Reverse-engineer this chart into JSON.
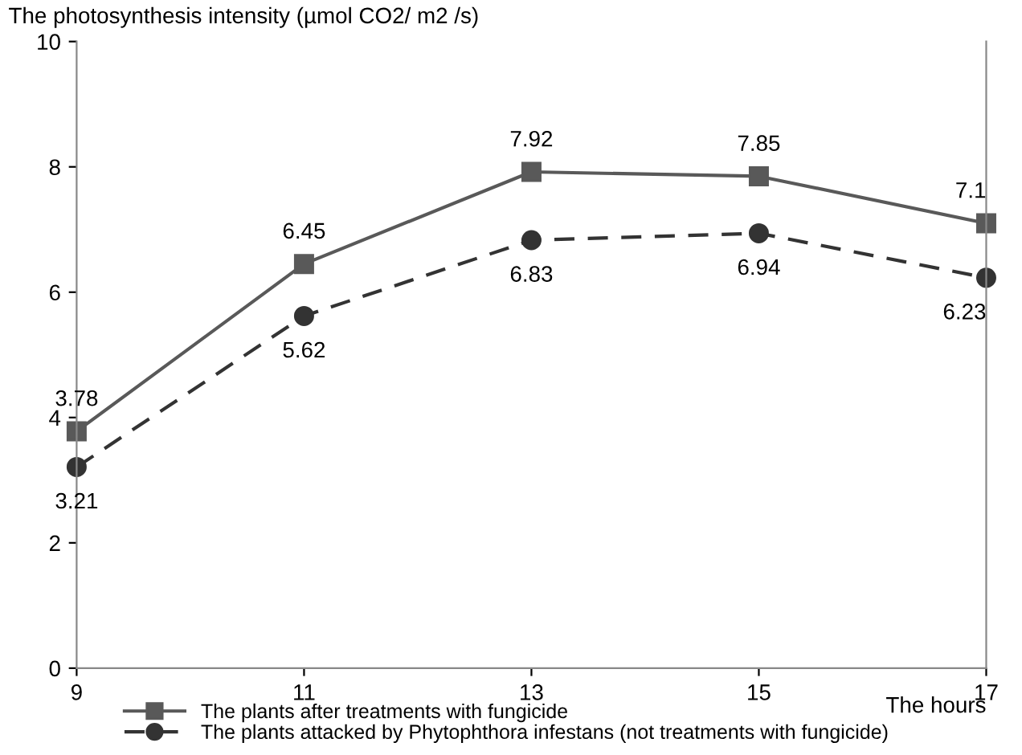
{
  "chart_data": {
    "type": "line",
    "ylabel": "The photosynthesis intensity (µmol CO2/ m2 /s)",
    "xlabel": "The hours",
    "x": [
      9,
      11,
      13,
      15,
      17
    ],
    "xlim": [
      9,
      17
    ],
    "xticks": [
      9,
      11,
      13,
      15,
      17
    ],
    "ylim": [
      0,
      10
    ],
    "yticks": [
      0,
      2,
      4,
      6,
      8,
      10
    ],
    "grid": false,
    "legend": "bottom",
    "data_labels": true,
    "series": [
      {
        "name": "The plants after treatments with fungicide",
        "color": "#595959",
        "values": [
          3.78,
          6.45,
          7.92,
          7.85,
          7.1
        ],
        "marker": "square",
        "line_style": "solid"
      },
      {
        "name": "The plants attacked by Phytophthora infestans (not treatments with fungicide)",
        "color": "#333333",
        "values": [
          3.21,
          5.62,
          6.83,
          6.94,
          6.23
        ],
        "marker": "circle",
        "line_style": "dashed"
      }
    ]
  }
}
